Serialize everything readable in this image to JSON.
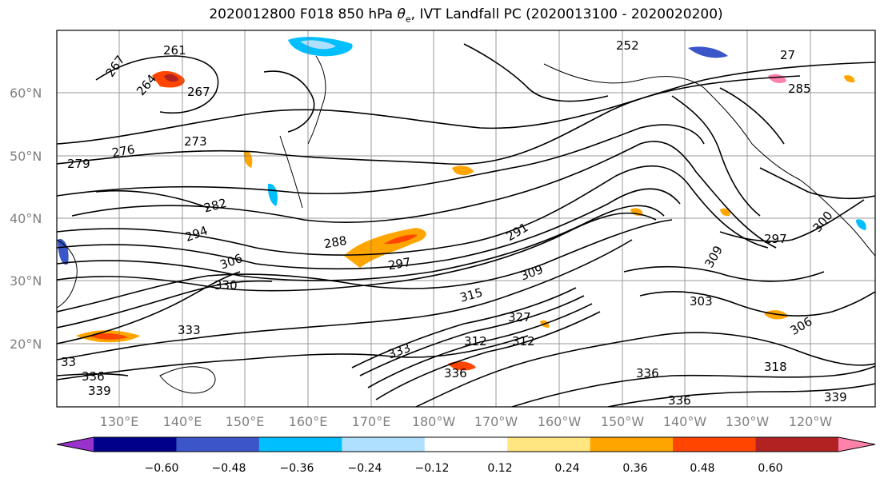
{
  "title": {
    "prefix": "2020012800 F018 850 hPa ",
    "theta": "θ",
    "theta_sub": "e",
    "suffix": ", IVT Landfall PC (2020013100 - 2020020200)"
  },
  "lat_labels": [
    "60°N",
    "50°N",
    "40°N",
    "30°N",
    "20°N"
  ],
  "lon_labels": [
    "130°E",
    "140°E",
    "150°E",
    "160°E",
    "170°E",
    "180°W",
    "170°W",
    "160°W",
    "150°W",
    "140°W",
    "130°W",
    "120°W"
  ],
  "colorbar": {
    "ticks": [
      "−0.60",
      "−0.48",
      "−0.36",
      "−0.24",
      "−0.12",
      "0.12",
      "0.24",
      "0.36",
      "0.48",
      "0.60"
    ],
    "colors": [
      "#9932cc",
      "#00008b",
      "#3a56c8",
      "#00bfff",
      "#b0e0ff",
      "#ffffff",
      "#ffe680",
      "#ffa500",
      "#ff4500",
      "#b22222",
      "#ff82ab"
    ]
  },
  "contour_labels": [
    {
      "text": "261"
    },
    {
      "text": "267"
    },
    {
      "text": "264"
    },
    {
      "text": "267"
    },
    {
      "text": "276"
    },
    {
      "text": "279"
    },
    {
      "text": "273"
    },
    {
      "text": "282"
    },
    {
      "text": "288"
    },
    {
      "text": "291"
    },
    {
      "text": "297"
    },
    {
      "text": "294"
    },
    {
      "text": "306"
    },
    {
      "text": "330"
    },
    {
      "text": "309"
    },
    {
      "text": "315"
    },
    {
      "text": "327"
    },
    {
      "text": "333"
    },
    {
      "text": "312"
    },
    {
      "text": "312"
    },
    {
      "text": "336"
    },
    {
      "text": "336"
    },
    {
      "text": "336"
    },
    {
      "text": "339"
    },
    {
      "text": "303"
    },
    {
      "text": "306"
    },
    {
      "text": "318"
    },
    {
      "text": "300"
    },
    {
      "text": "285"
    },
    {
      "text": "252"
    },
    {
      "text": "27"
    },
    {
      "text": "33"
    },
    {
      "text": "333"
    },
    {
      "text": "336"
    },
    {
      "text": "339"
    },
    {
      "text": "309"
    },
    {
      "text": "297"
    }
  ]
}
